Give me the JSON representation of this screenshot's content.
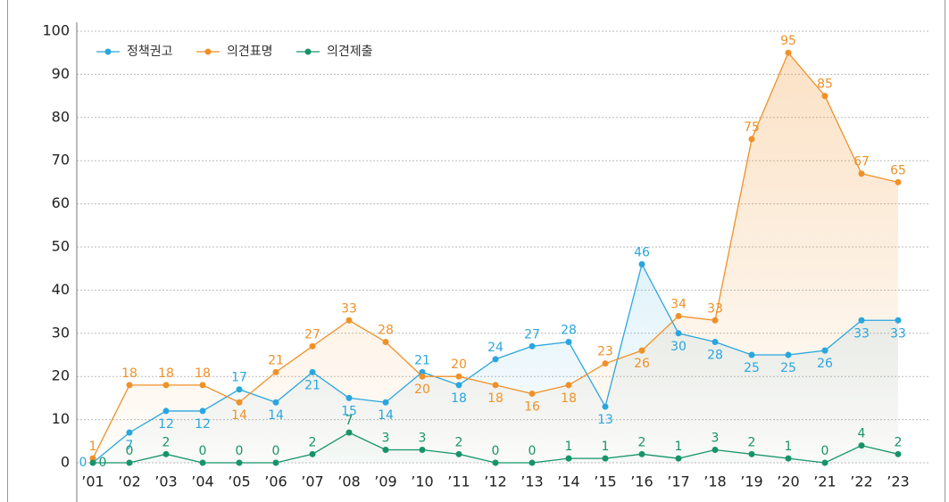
{
  "chart_data": {
    "type": "line",
    "categories": [
      "’01",
      "’02",
      "’03",
      "’04",
      "’05",
      "’06",
      "’07",
      "’08",
      "’09",
      "’10",
      "’11",
      "’12",
      "’13",
      "’14",
      "’15",
      "’16",
      "’17",
      "’18",
      "’19",
      "’20",
      "’21",
      "’22",
      "’23"
    ],
    "series": [
      {
        "name": "정책권고",
        "color": "#2aa6de",
        "values": [
          0,
          7,
          12,
          12,
          17,
          14,
          21,
          15,
          14,
          21,
          18,
          24,
          27,
          28,
          13,
          46,
          30,
          28,
          25,
          25,
          26,
          33,
          33
        ]
      },
      {
        "name": "의견표명",
        "color": "#ef9128",
        "values": [
          1,
          18,
          18,
          18,
          14,
          21,
          27,
          33,
          28,
          20,
          20,
          18,
          16,
          18,
          23,
          26,
          34,
          33,
          75,
          95,
          85,
          67,
          65
        ]
      },
      {
        "name": "의견제출",
        "color": "#17936a",
        "values": [
          0,
          0,
          2,
          0,
          0,
          0,
          2,
          7,
          3,
          3,
          2,
          0,
          0,
          1,
          1,
          2,
          1,
          3,
          2,
          1,
          0,
          4,
          2
        ]
      }
    ],
    "ylim": [
      0,
      100
    ],
    "yticks": [
      0,
      10,
      20,
      30,
      40,
      50,
      60,
      70,
      80,
      90,
      100
    ],
    "grid": true,
    "legend": "upper left"
  }
}
